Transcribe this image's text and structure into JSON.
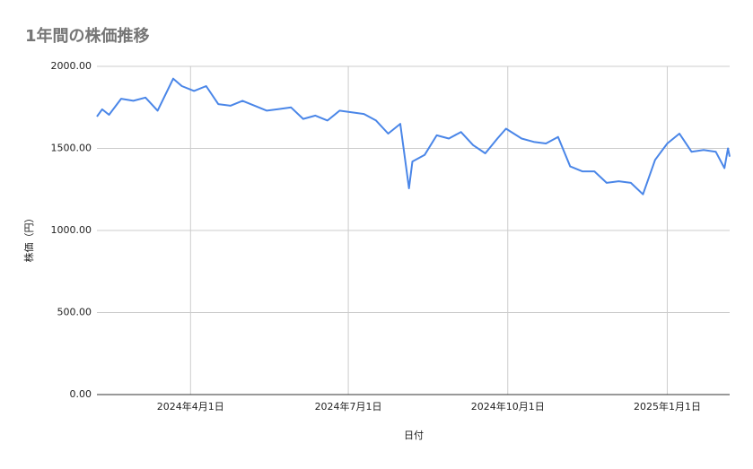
{
  "chart_data": {
    "type": "line",
    "title": "1年間の株価推移",
    "x_label": "日付",
    "y_label": "株価（円）",
    "x": [
      "2024-02-07",
      "2024-02-10",
      "2024-02-14",
      "2024-02-21",
      "2024-02-28",
      "2024-03-06",
      "2024-03-13",
      "2024-03-22",
      "2024-03-27",
      "2024-04-03",
      "2024-04-10",
      "2024-04-17",
      "2024-04-24",
      "2024-05-01",
      "2024-05-08",
      "2024-05-15",
      "2024-05-22",
      "2024-05-29",
      "2024-06-05",
      "2024-06-12",
      "2024-06-19",
      "2024-06-26",
      "2024-07-03",
      "2024-07-10",
      "2024-07-17",
      "2024-07-24",
      "2024-07-31",
      "2024-08-05",
      "2024-08-07",
      "2024-08-14",
      "2024-08-21",
      "2024-08-28",
      "2024-09-04",
      "2024-09-11",
      "2024-09-18",
      "2024-09-25",
      "2024-09-30",
      "2024-10-09",
      "2024-10-16",
      "2024-10-23",
      "2024-10-30",
      "2024-11-06",
      "2024-11-13",
      "2024-11-20",
      "2024-11-27",
      "2024-12-04",
      "2024-12-11",
      "2024-12-18",
      "2024-12-25",
      "2025-01-01",
      "2025-01-08",
      "2025-01-15",
      "2025-01-22",
      "2025-01-29",
      "2025-02-03",
      "2025-02-05",
      "2025-02-06"
    ],
    "series": [
      {
        "name": "株価",
        "color": "#4a86e8",
        "values": [
          1694,
          1738,
          1705,
          1803,
          1790,
          1810,
          1730,
          1925,
          1880,
          1850,
          1880,
          1770,
          1760,
          1790,
          1760,
          1730,
          1740,
          1750,
          1680,
          1700,
          1670,
          1730,
          1720,
          1710,
          1670,
          1590,
          1650,
          1257,
          1420,
          1460,
          1580,
          1560,
          1600,
          1520,
          1470,
          1560,
          1620,
          1560,
          1540,
          1530,
          1570,
          1390,
          1360,
          1360,
          1290,
          1300,
          1290,
          1220,
          1430,
          1530,
          1590,
          1480,
          1490,
          1480,
          1380,
          1500,
          1450
        ]
      }
    ],
    "xlim": [
      "2024-02-07",
      "2025-02-06"
    ],
    "xticks": [
      {
        "value": "2024-04-01",
        "label": "2024年4月1日"
      },
      {
        "value": "2024-07-01",
        "label": "2024年7月1日"
      },
      {
        "value": "2024-10-01",
        "label": "2024年10月1日"
      },
      {
        "value": "2025-01-01",
        "label": "2025年1月1日"
      }
    ],
    "ylim": [
      0,
      2000
    ],
    "yticks": [
      {
        "value": 0,
        "label": "0.00"
      },
      {
        "value": 500,
        "label": "500.00"
      },
      {
        "value": 1000,
        "label": "1000.00"
      },
      {
        "value": 1500,
        "label": "1500.00"
      },
      {
        "value": 2000,
        "label": "2000.00"
      }
    ],
    "grid": true
  }
}
